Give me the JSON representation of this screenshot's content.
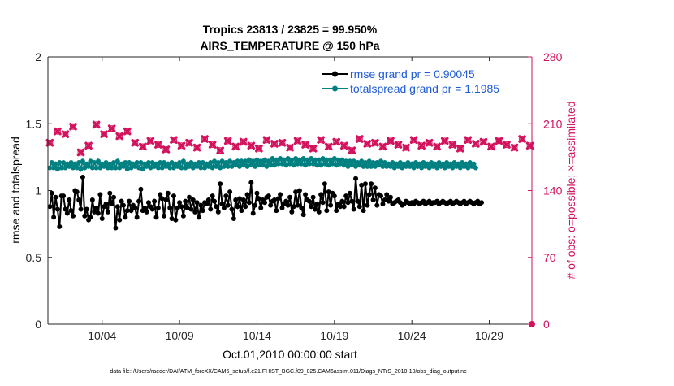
{
  "chart_data": {
    "type": "line",
    "title_line1": "Tropics 23813 / 23825 = 99.950%",
    "title_line2": "AIRS_TEMPERATURE @ 150 hPa",
    "xlabel": "Oct.01,2010 00:00:00 start",
    "ylabel_left": "rmse and totalspread",
    "ylabel_right": "# of obs: o=possible; ×=assimilated",
    "footer": "data file: /Users/raeder/DAI/ATM_forcXX/CAM6_setup/f.e21.FHIST_BGC.f09_025.CAM6assim.011/Diags_NTrS_2010-10/obs_diag_output.nc",
    "ylim_left": [
      0,
      2
    ],
    "ylim_right": [
      0,
      280
    ],
    "xlim": [
      1,
      32.25
    ],
    "x_ticks": [
      {
        "label": "10/04",
        "value": 4.5
      },
      {
        "label": "10/09",
        "value": 9.5
      },
      {
        "label": "10/14",
        "value": 14.5
      },
      {
        "label": "10/19",
        "value": 19.5
      },
      {
        "label": "10/24",
        "value": 24.5
      },
      {
        "label": "10/29",
        "value": 29.5
      }
    ],
    "y_ticks_left": [
      {
        "label": "0",
        "value": 0
      },
      {
        "label": "0.5",
        "value": 0.5
      },
      {
        "label": "1",
        "value": 1
      },
      {
        "label": "1.5",
        "value": 1.5
      },
      {
        "label": "2",
        "value": 2
      }
    ],
    "y_ticks_right": [
      {
        "label": "0",
        "value": 0
      },
      {
        "label": "70",
        "value": 70
      },
      {
        "label": "140",
        "value": 140
      },
      {
        "label": "210",
        "value": 210
      },
      {
        "label": "280",
        "value": 280
      }
    ],
    "x_start": 1.125,
    "x_step": 0.25,
    "series": [
      {
        "name": "rmse grand pr = 0.90045",
        "color": "#000000",
        "axis": "left",
        "marker": "dot",
        "values": [
          0.88,
          0.98,
          0.8,
          0.95,
          0.86,
          0.73,
          0.96,
          0.96,
          0.86,
          0.83,
          0.93,
          0.85,
          0.81,
          1.0,
          0.99,
          0.93,
          0.86,
          1.1,
          0.81,
          0.86,
          0.78,
          0.8,
          0.93,
          0.84,
          0.87,
          0.83,
          0.97,
          0.79,
          0.88,
          0.9,
          0.84,
          0.98,
          0.9,
          0.95,
          0.72,
          0.88,
          0.78,
          0.92,
          0.89,
          0.8,
          0.85,
          0.92,
          0.85,
          0.89,
          0.87,
          0.8,
          0.92,
          1.01,
          0.85,
          0.87,
          0.84,
          0.91,
          0.88,
          0.86,
          0.92,
          0.8,
          0.87,
          0.97,
          0.94,
          0.81,
          0.93,
          0.98,
          0.87,
          0.79,
          0.96,
          0.78,
          0.87,
          0.91,
          0.88,
          0.81,
          0.92,
          0.87,
          0.95,
          0.86,
          0.93,
          0.84,
          0.91,
          0.8,
          0.89,
          0.85,
          0.91,
          0.9,
          0.93,
          0.86,
          0.96,
          0.92,
          0.88,
          0.84,
          1.05,
          0.9,
          0.87,
          0.96,
          0.89,
          0.99,
          0.86,
          0.79,
          0.93,
          0.88,
          0.94,
          0.85,
          0.93,
          0.88,
          0.97,
          0.91,
          1.06,
          0.83,
          0.89,
          0.98,
          0.94,
          0.87,
          0.93,
          0.91,
          0.95,
          0.96,
          0.89,
          0.92,
          0.93,
          0.85,
          0.94,
          0.97,
          0.87,
          0.9,
          0.92,
          0.89,
          0.95,
          0.84,
          0.88,
          0.99,
          0.89,
          1.0,
          0.87,
          0.82,
          0.97,
          0.93,
          0.92,
          0.88,
          0.95,
          0.86,
          0.9,
          0.84,
          0.97,
          0.91,
          1.05,
          0.85,
          0.99,
          0.89,
          0.98,
          0.96,
          0.85,
          0.9,
          0.88,
          0.92,
          0.88,
          0.96,
          0.91,
          0.98,
          0.92,
          0.86,
          1.09,
          0.92,
          0.88,
          1.04,
          0.85,
          1.05,
          0.89,
          0.97,
          1.05,
          0.93,
          1.02,
          0.89,
          0.97,
          0.96,
          0.9,
          0.93,
          0.97,
          0.92,
          0.95,
          0.9,
          0.91,
          0.92,
          0.93,
          0.91,
          0.89,
          0.9,
          0.92,
          0.91,
          0.9,
          0.91,
          0.9,
          0.92,
          0.91,
          0.9,
          0.91,
          0.92,
          0.9,
          0.91,
          0.92,
          0.9,
          0.91,
          0.91,
          0.92,
          0.9,
          0.91,
          0.92,
          0.91,
          0.9,
          0.91,
          0.92,
          0.9,
          0.91,
          0.92,
          0.91,
          0.9,
          0.91,
          0.92,
          0.9,
          0.91,
          0.92,
          0.91,
          0.9,
          0.91,
          0.92,
          0.9,
          0.91
        ]
      },
      {
        "name": "totalspread grand pr = 1.1985",
        "color": "#008080",
        "axis": "left",
        "marker": "dot",
        "values": [
          1.17,
          1.21,
          1.17,
          1.2,
          1.16,
          1.21,
          1.17,
          1.21,
          1.17,
          1.2,
          1.18,
          1.21,
          1.17,
          1.2,
          1.17,
          1.21,
          1.16,
          1.22,
          1.17,
          1.2,
          1.18,
          1.22,
          1.17,
          1.21,
          1.17,
          1.22,
          1.17,
          1.2,
          1.18,
          1.21,
          1.17,
          1.2,
          1.17,
          1.21,
          1.17,
          1.22,
          1.17,
          1.2,
          1.18,
          1.21,
          1.16,
          1.21,
          1.17,
          1.2,
          1.18,
          1.21,
          1.17,
          1.21,
          1.16,
          1.2,
          1.18,
          1.21,
          1.17,
          1.21,
          1.18,
          1.2,
          1.17,
          1.21,
          1.17,
          1.21,
          1.18,
          1.2,
          1.17,
          1.21,
          1.17,
          1.2,
          1.18,
          1.21,
          1.17,
          1.22,
          1.17,
          1.2,
          1.18,
          1.21,
          1.17,
          1.2,
          1.18,
          1.21,
          1.17,
          1.21,
          1.17,
          1.2,
          1.18,
          1.21,
          1.17,
          1.22,
          1.18,
          1.21,
          1.17,
          1.22,
          1.18,
          1.21,
          1.18,
          1.22,
          1.18,
          1.21,
          1.19,
          1.22,
          1.18,
          1.22,
          1.19,
          1.22,
          1.18,
          1.23,
          1.19,
          1.22,
          1.18,
          1.23,
          1.19,
          1.22,
          1.19,
          1.23,
          1.18,
          1.22,
          1.19,
          1.24,
          1.19,
          1.23,
          1.2,
          1.24,
          1.2,
          1.23,
          1.19,
          1.24,
          1.2,
          1.23,
          1.19,
          1.24,
          1.2,
          1.23,
          1.2,
          1.24,
          1.19,
          1.23,
          1.2,
          1.24,
          1.2,
          1.23,
          1.19,
          1.23,
          1.19,
          1.24,
          1.2,
          1.23,
          1.19,
          1.23,
          1.2,
          1.24,
          1.19,
          1.23,
          1.2,
          1.23,
          1.19,
          1.22,
          1.18,
          1.22,
          1.19,
          1.22,
          1.18,
          1.21,
          1.19,
          1.22,
          1.18,
          1.21,
          1.18,
          1.22,
          1.18,
          1.21,
          1.18,
          1.21,
          1.19,
          1.22,
          1.18,
          1.21,
          1.18,
          1.2,
          1.18,
          1.21,
          1.17,
          1.2,
          1.18,
          1.21,
          1.17,
          1.2,
          1.18,
          1.21,
          1.18,
          1.2,
          1.17,
          1.21,
          1.18,
          1.2,
          1.17,
          1.21,
          1.18,
          1.2,
          1.17,
          1.21,
          1.18,
          1.2,
          1.17,
          1.21,
          1.18,
          1.2,
          1.17,
          1.21,
          1.18,
          1.2,
          1.17,
          1.21,
          1.18,
          1.2,
          1.17,
          1.21,
          1.18,
          1.2,
          1.17,
          1.21,
          1.18,
          1.2,
          1.17
        ]
      },
      {
        "name": "obs possible",
        "color": "#d2125d",
        "axis": "right",
        "marker": "circle",
        "values": [
          190,
          195,
          202,
          188,
          199,
          185,
          207,
          194,
          180,
          201,
          187,
          196,
          209,
          184,
          199,
          191,
          205,
          189,
          197,
          181,
          202,
          195,
          190,
          208,
          186,
          199,
          192,
          204,
          188,
          196,
          183,
          201,
          193,
          207,
          187,
          198,
          190,
          205,
          185,
          197,
          194,
          203,
          188,
          199,
          182,
          201,
          192,
          206,
          186,
          198,
          191,
          203,
          187,
          196,
          184,
          200,
          193,
          208,
          189,
          197,
          190,
          204,
          185,
          199,
          192,
          203,
          188,
          197,
          184,
          201,
          193,
          207,
          186,
          199,
          191,
          203,
          187,
          196,
          182,
          201,
          194,
          208,
          189,
          198,
          190,
          205,
          186,
          199,
          192,
          204,
          188,
          197,
          185,
          202,
          193,
          207,
          187,
          198,
          190,
          204,
          186,
          199,
          192,
          203,
          188,
          197,
          184,
          200,
          193,
          208,
          189,
          198,
          191,
          204,
          186,
          199,
          192,
          205,
          188,
          197,
          185,
          202,
          194,
          209,
          187,
          198,
          190,
          204,
          186,
          199,
          193,
          203,
          188,
          197,
          184,
          201,
          192,
          206,
          186,
          198,
          191,
          203,
          187,
          196,
          183,
          200,
          193,
          208,
          189,
          197,
          190,
          204,
          185,
          199,
          192,
          203,
          188,
          197,
          184,
          201,
          193,
          207,
          186,
          199,
          191,
          203,
          187,
          196,
          182,
          201,
          194,
          208,
          189,
          198,
          190,
          205,
          186,
          199,
          192,
          204,
          188,
          197,
          185,
          202,
          193,
          207,
          187,
          198,
          190,
          204,
          186,
          199,
          192,
          203,
          188,
          197,
          184,
          200,
          193,
          208,
          189,
          198,
          191,
          204,
          186,
          199,
          192,
          205,
          188,
          197,
          185,
          202,
          194,
          209,
          187,
          198,
          190,
          204,
          186,
          199,
          193,
          203,
          188,
          197,
          184,
          201,
          192,
          206
        ]
      },
      {
        "name": "obs assimilated",
        "color": "#d2125d",
        "axis": "right",
        "marker": "x",
        "values": [
          190,
          195,
          202,
          188,
          199,
          185,
          207,
          194,
          180,
          201,
          187,
          196,
          209,
          184,
          199,
          191,
          205,
          189,
          197,
          181,
          202,
          195,
          190,
          208,
          186,
          199,
          192,
          204,
          188,
          196,
          183,
          201,
          193,
          207,
          187,
          198,
          190,
          205,
          185,
          197,
          194,
          203,
          188,
          199,
          182,
          201,
          192,
          206,
          186,
          198,
          191,
          203,
          187,
          196,
          184,
          200,
          193,
          208,
          189,
          197,
          190,
          204,
          185,
          199,
          192,
          203,
          188,
          197,
          184,
          201,
          193,
          207,
          186,
          199,
          191,
          203,
          187,
          196,
          182,
          201,
          194,
          208,
          189,
          198,
          190,
          205,
          186,
          199,
          192,
          204,
          188,
          197,
          185,
          202,
          193,
          207,
          187,
          198,
          190,
          204,
          186,
          199,
          192,
          203,
          188,
          197,
          184,
          200,
          193,
          208,
          189,
          198,
          191,
          204,
          186,
          199,
          192,
          205,
          188,
          197,
          185,
          202,
          194,
          209,
          187,
          198,
          190,
          204,
          186,
          199,
          193,
          203,
          188,
          197,
          184,
          201,
          192,
          206,
          186,
          198,
          191,
          203,
          187,
          196,
          183,
          200,
          193,
          208,
          189,
          197,
          190,
          204,
          185,
          199,
          192,
          203,
          188,
          197,
          184,
          201,
          193,
          207,
          186,
          199,
          191,
          203,
          187,
          196,
          182,
          201,
          194,
          208,
          189,
          198,
          190,
          205,
          186,
          199,
          192,
          204,
          188,
          197,
          185,
          202,
          193,
          207,
          187,
          198,
          190,
          204,
          186,
          199,
          192,
          203,
          188,
          197,
          184,
          200,
          193,
          208,
          189,
          198,
          191,
          204,
          186,
          199,
          192,
          205,
          188,
          197,
          185,
          202,
          194,
          209,
          187,
          198,
          190,
          204,
          186,
          199,
          193,
          203,
          188,
          197,
          184,
          201,
          192,
          206
        ]
      }
    ],
    "legend_position": "top-right",
    "colors": {
      "rmse": "#000000",
      "spread": "#008080",
      "obs": "#d2125d",
      "axis": "#262626"
    }
  }
}
